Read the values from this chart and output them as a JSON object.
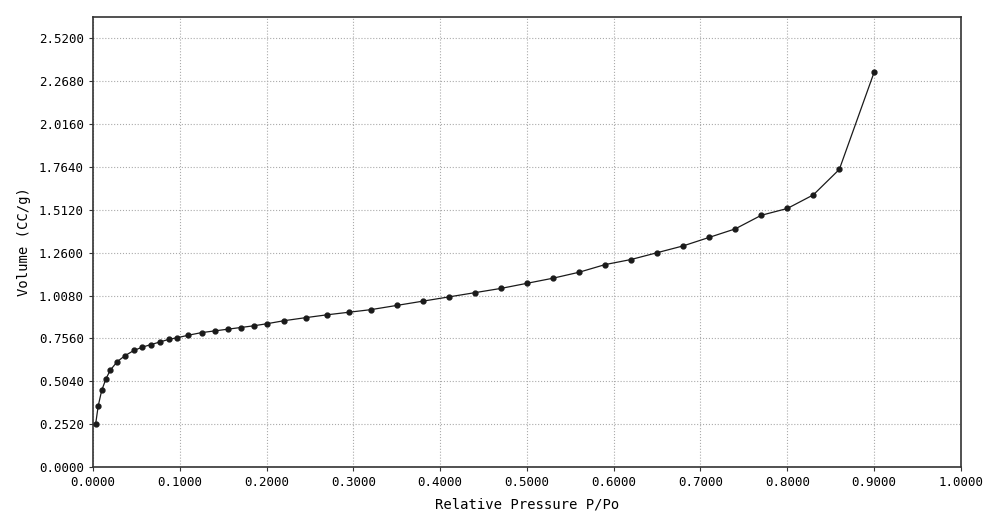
{
  "x": [
    0.003,
    0.006,
    0.01,
    0.015,
    0.02,
    0.028,
    0.037,
    0.047,
    0.057,
    0.067,
    0.077,
    0.087,
    0.097,
    0.11,
    0.125,
    0.14,
    0.155,
    0.17,
    0.185,
    0.2,
    0.22,
    0.245,
    0.27,
    0.295,
    0.32,
    0.35,
    0.38,
    0.41,
    0.44,
    0.47,
    0.5,
    0.53,
    0.56,
    0.59,
    0.62,
    0.65,
    0.68,
    0.71,
    0.74,
    0.77,
    0.8,
    0.83,
    0.86,
    0.9
  ],
  "y": [
    0.252,
    0.36,
    0.45,
    0.52,
    0.57,
    0.62,
    0.655,
    0.685,
    0.705,
    0.72,
    0.735,
    0.75,
    0.76,
    0.775,
    0.79,
    0.8,
    0.81,
    0.82,
    0.83,
    0.842,
    0.86,
    0.878,
    0.895,
    0.91,
    0.925,
    0.95,
    0.975,
    1.0,
    1.025,
    1.05,
    1.08,
    1.11,
    1.145,
    1.19,
    1.22,
    1.26,
    1.3,
    1.35,
    1.4,
    1.48,
    1.52,
    1.6,
    1.75,
    2.32
  ],
  "xlabel": "Relative Pressure P/Po",
  "ylabel": "Volume (CC/g)",
  "xlim": [
    0.0,
    1.0
  ],
  "ylim": [
    0.0,
    2.648
  ],
  "yticks": [
    0.0,
    0.252,
    0.504,
    0.756,
    1.008,
    1.26,
    1.512,
    1.764,
    2.016,
    2.268,
    2.52
  ],
  "xticks": [
    0.0,
    0.1,
    0.2,
    0.3,
    0.4,
    0.5,
    0.6,
    0.7,
    0.8,
    0.9,
    1.0
  ],
  "line_color": "#1a1a1a",
  "marker": "o",
  "marker_size": 3.5,
  "bg_color": "#ffffff",
  "plot_bg_color": "#ffffff",
  "grid_color": "#aaaaaa",
  "grid_style": "dotted",
  "xlabel_fontsize": 10,
  "ylabel_fontsize": 10,
  "tick_fontsize": 9,
  "tick_fontfamily": "monospace"
}
